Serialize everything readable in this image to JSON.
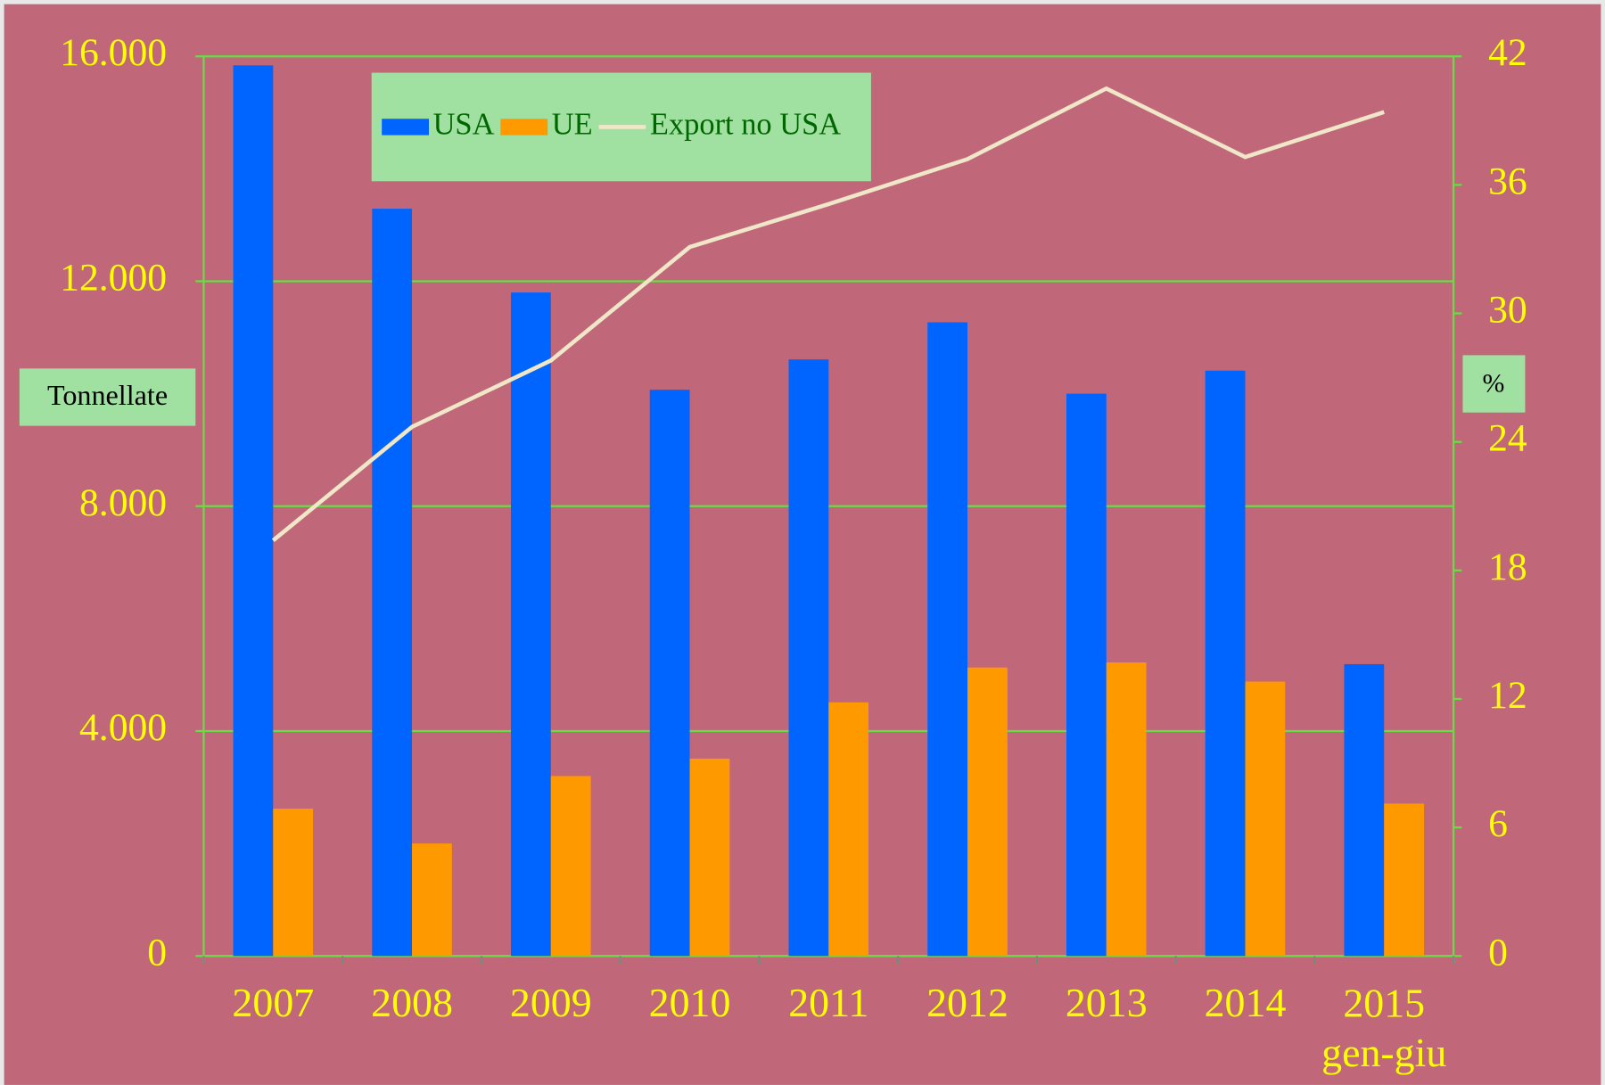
{
  "chart_data": {
    "type": "bar",
    "categories": [
      "2007",
      "2008",
      "2009",
      "2010",
      "2011",
      "2012",
      "2013",
      "2014",
      "2015\ngen-giu"
    ],
    "series": [
      {
        "name": "USA",
        "color": "#0064ff",
        "values": [
          15840,
          13290,
          11800,
          10070,
          10610,
          11270,
          10000,
          10410,
          5190
        ]
      },
      {
        "name": "UE",
        "color": "#ff9900",
        "values": [
          2620,
          2000,
          3200,
          3510,
          4510,
          5130,
          5220,
          4880,
          2710
        ]
      },
      {
        "name": "Export no USA",
        "type": "line",
        "axis": "y2",
        "color": "#f0e6c8",
        "values": [
          19.4,
          24.7,
          27.8,
          33.1,
          35.1,
          37.2,
          40.5,
          37.3,
          39.4
        ]
      }
    ],
    "y_label": "Tonnellate",
    "y2_label": "%",
    "ylim": [
      0,
      16000
    ],
    "yticks": [
      0,
      {
        "value": 4000,
        "label": "4.000"
      },
      {
        "value": 8000,
        "label": "8.000"
      },
      {
        "value": 12000,
        "label": "12.000"
      },
      {
        "value": 16000,
        "label": "16.000"
      }
    ],
    "y2lim": [
      0,
      42
    ],
    "y2ticks": [
      0,
      6,
      12,
      18,
      24,
      30,
      36,
      42
    ],
    "grid": true,
    "legend": "top"
  }
}
